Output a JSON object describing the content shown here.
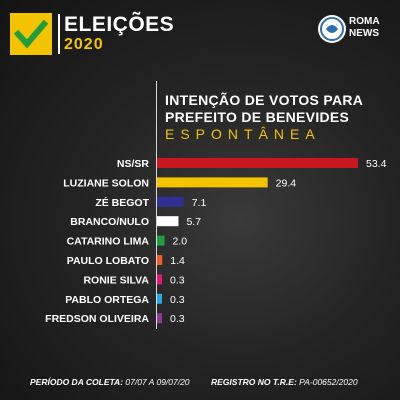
{
  "header": {
    "title": "ELEIÇÕES",
    "year": "2020",
    "news_line1": "ROMA",
    "news_line2": "NEWS",
    "check_icon": "check-icon",
    "news_icon": "globe-icon"
  },
  "colors": {
    "accent": "#f3c300",
    "background": "#1b1b1b"
  },
  "chart_data": {
    "type": "bar",
    "orientation": "horizontal",
    "title_line1": "INTENÇÃO DE VOTOS PARA",
    "title_line2": "PREFEITO DE BENEVIDES",
    "subtitle": "ESPONTÂNEA",
    "categories": [
      "NS/SR",
      "LUZIANE SOLON",
      "ZÉ BEGOT",
      "BRANCO/NULO",
      "CATARINO LIMA",
      "PAULO LOBATO",
      "RONIE SILVA",
      "PABLO ORTEGA",
      "FREDSON OLIVEIRA"
    ],
    "values": [
      53.4,
      29.4,
      7.1,
      5.7,
      2.0,
      1.4,
      0.3,
      0.3,
      0.3
    ],
    "value_labels": [
      "53.4",
      "29.4",
      "7.1",
      "5.7",
      "2.0",
      "1.4",
      "0.3",
      "0.3",
      "0.3"
    ],
    "colors": [
      "#c8171e",
      "#f5c400",
      "#2e3192",
      "#ffffff",
      "#1e9e3e",
      "#f05a28",
      "#e8176d",
      "#27aae1",
      "#8e3a96"
    ],
    "xlim": [
      0,
      53.4
    ],
    "grid": false,
    "legend": "none"
  },
  "footer": {
    "period_label": "PERÍODO DA COLETA:",
    "period_value": "07/07 A 09/07/20",
    "registry_label": "REGISTRO NO T.R.E:",
    "registry_value": "PA-00652/2020"
  }
}
